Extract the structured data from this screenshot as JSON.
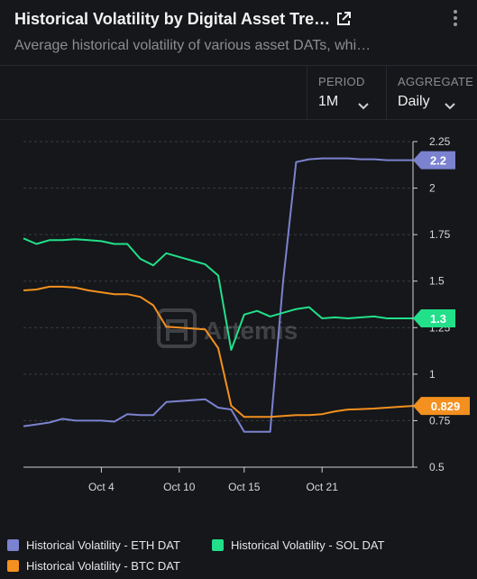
{
  "header": {
    "title": "Historical Volatility by Digital Asset Tre…",
    "subtitle": "Average historical volatility of various asset DATs, whi…"
  },
  "controls": {
    "period": {
      "label": "PERIOD",
      "value": "1M"
    },
    "aggregate": {
      "label": "AGGREGATE",
      "value": "Daily"
    }
  },
  "watermark": "Artemis",
  "colors": {
    "eth": "#7b82cf",
    "sol": "#22e08a",
    "btc": "#f3901f",
    "background": "#15171a"
  },
  "chart_data": {
    "type": "line",
    "title": "",
    "xlabel": "",
    "ylabel": "",
    "ylim": [
      0.5,
      2.25
    ],
    "yticks": [
      "0.5",
      "0.75",
      "1",
      "1.25",
      "1.5",
      "1.75",
      "2",
      "2.25"
    ],
    "xticks": [
      {
        "day": 4,
        "label": "Oct 4"
      },
      {
        "day": 10,
        "label": "Oct 10"
      },
      {
        "day": 15,
        "label": "Oct 15"
      },
      {
        "day": 21,
        "label": "Oct 21"
      }
    ],
    "x": [
      -2,
      -1,
      0,
      1,
      2,
      3,
      4,
      5,
      6,
      7,
      8,
      9,
      10,
      11,
      12,
      13,
      14,
      15,
      16,
      17,
      18,
      19,
      20,
      21,
      22,
      23,
      24,
      25,
      26,
      27,
      28
    ],
    "series": [
      {
        "name": "Historical Volatility - ETH DAT",
        "color": "#7b82cf",
        "values": [
          0.72,
          0.73,
          0.74,
          0.76,
          0.75,
          0.75,
          0.75,
          0.745,
          0.785,
          0.78,
          0.78,
          0.85,
          0.855,
          0.86,
          0.865,
          0.82,
          0.81,
          0.69,
          0.69,
          0.69,
          1.5,
          2.14,
          2.155,
          2.16,
          2.16,
          2.16,
          2.155,
          2.155,
          2.15,
          2.15,
          2.15
        ],
        "last_label": "2.2"
      },
      {
        "name": "Historical Volatility - SOL DAT",
        "color": "#22e08a",
        "values": [
          1.73,
          1.7,
          1.72,
          1.72,
          1.725,
          1.72,
          1.715,
          1.7,
          1.7,
          1.62,
          1.585,
          1.65,
          1.63,
          1.61,
          1.59,
          1.53,
          1.13,
          1.32,
          1.34,
          1.31,
          1.33,
          1.35,
          1.36,
          1.3,
          1.305,
          1.3,
          1.305,
          1.31,
          1.3,
          1.3,
          1.3
        ],
        "last_label": "1.3"
      },
      {
        "name": "Historical Volatility - BTC DAT",
        "color": "#f3901f",
        "values": [
          1.45,
          1.455,
          1.47,
          1.47,
          1.465,
          1.45,
          1.44,
          1.43,
          1.43,
          1.415,
          1.37,
          1.255,
          1.25,
          1.245,
          1.24,
          1.14,
          0.83,
          0.77,
          0.77,
          0.77,
          0.775,
          0.78,
          0.78,
          0.785,
          0.8,
          0.81,
          0.812,
          0.815,
          0.82,
          0.825,
          0.829
        ],
        "last_label": "0.829"
      }
    ]
  },
  "legend": {
    "eth": "Historical Volatility - ETH DAT",
    "sol": "Historical Volatility - SOL DAT",
    "btc": "Historical Volatility - BTC DAT"
  }
}
